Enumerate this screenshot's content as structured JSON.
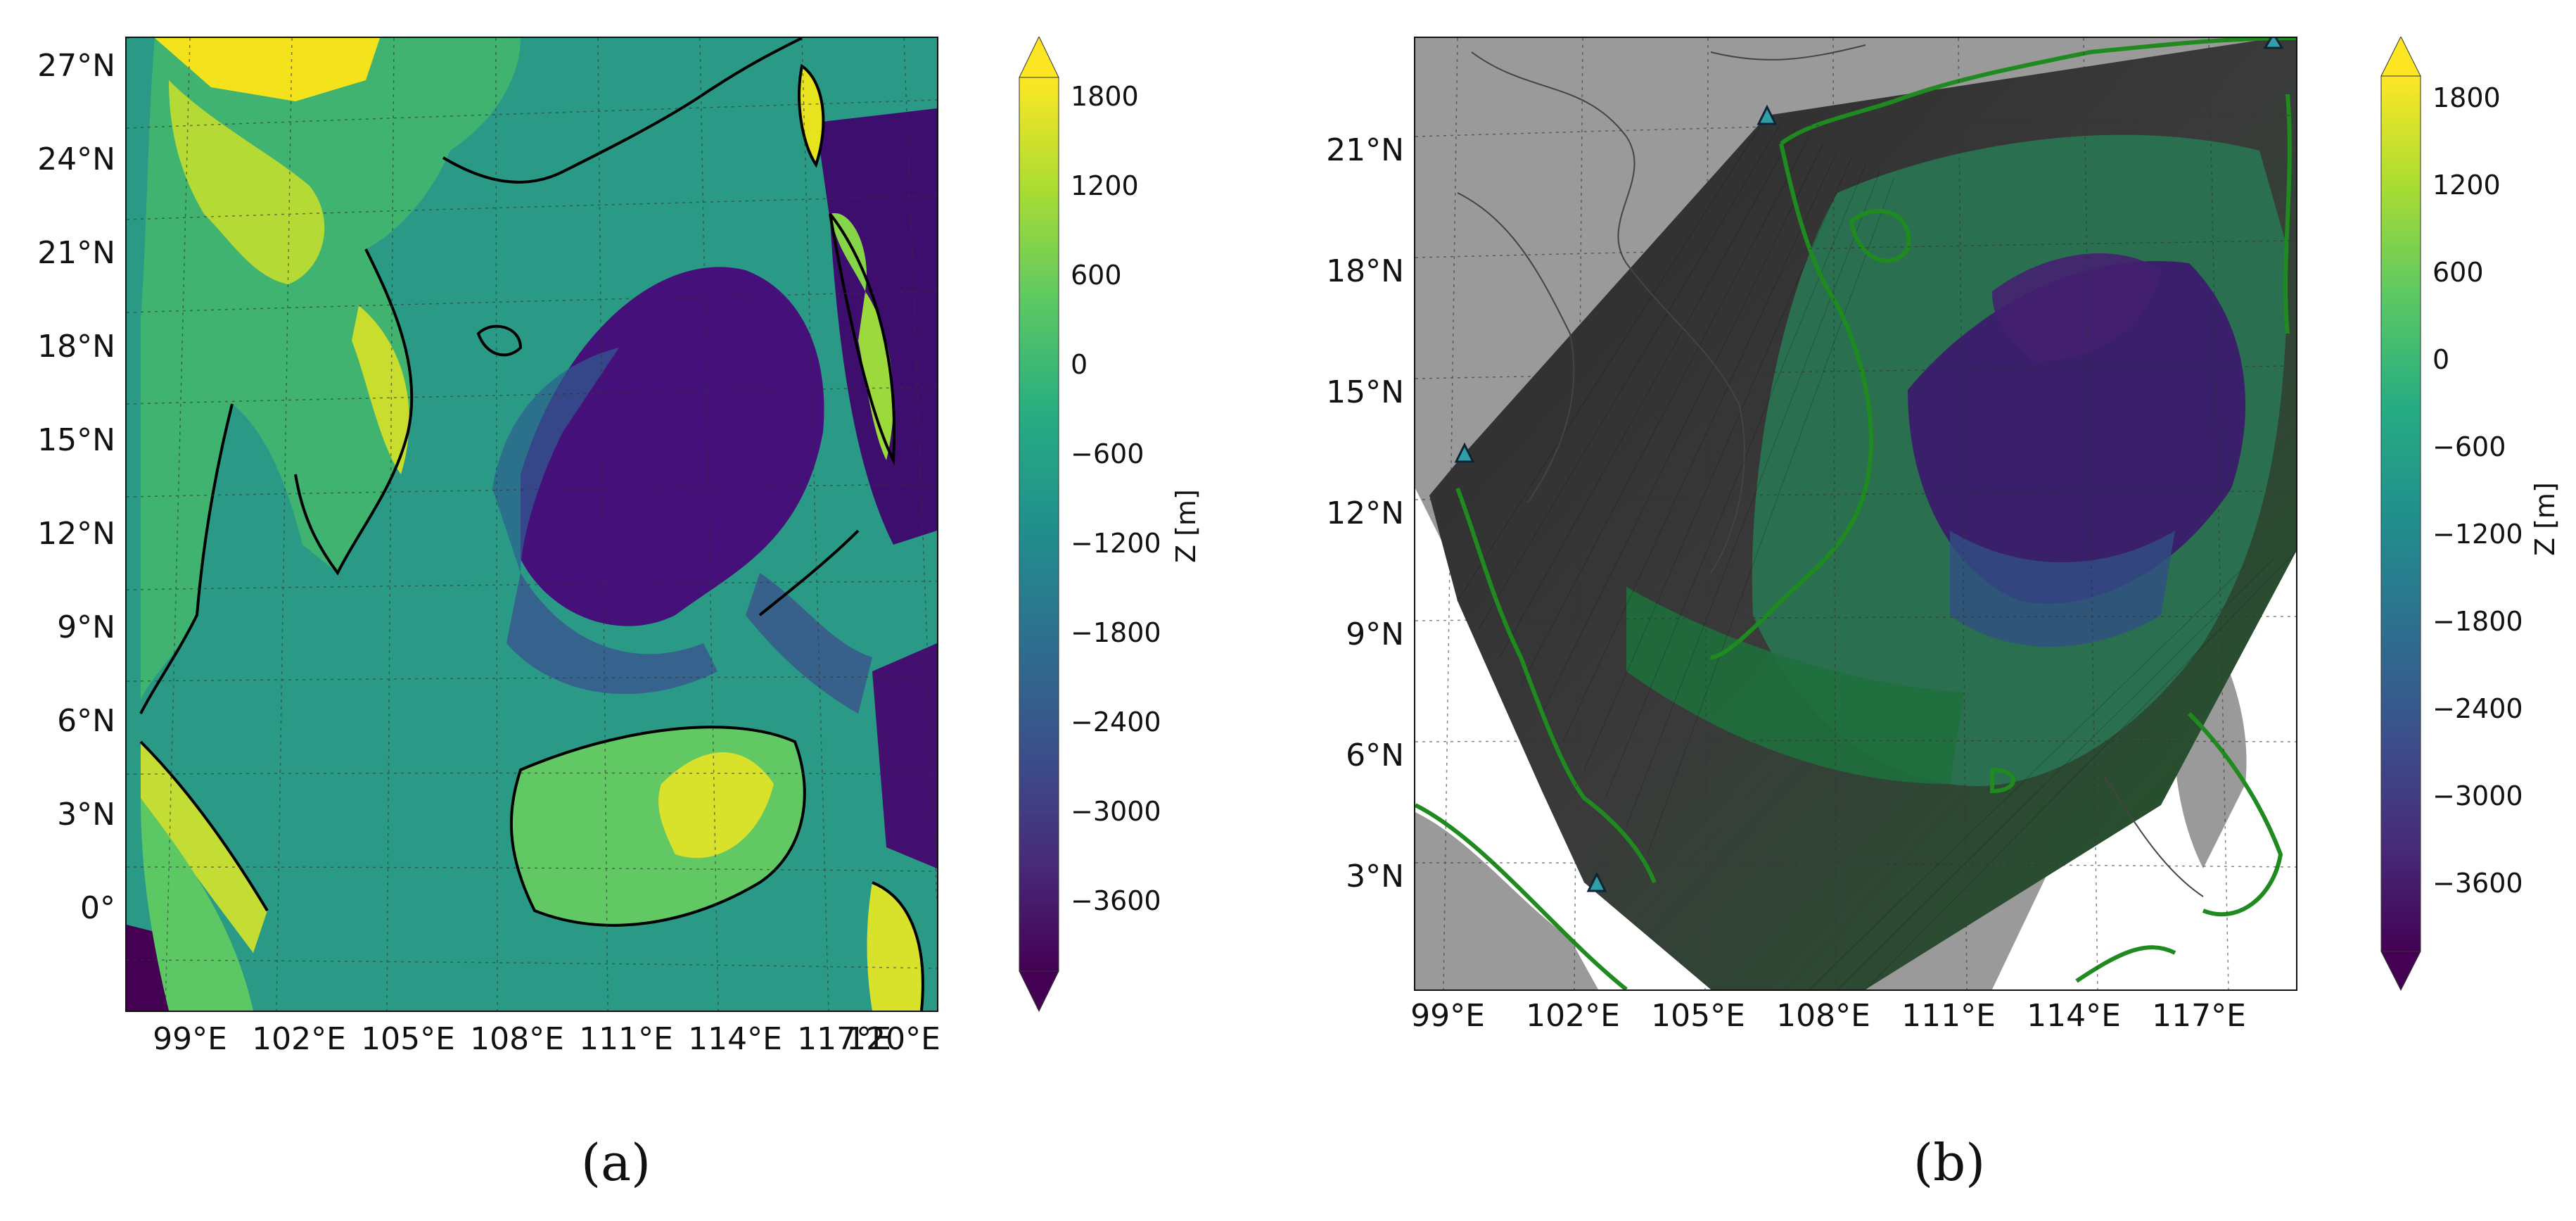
{
  "panels": [
    {
      "caption": "(a)",
      "lat_labels": [
        "27°N",
        "24°N",
        "21°N",
        "18°N",
        "15°N",
        "12°N",
        "9°N",
        "6°N",
        "3°N",
        "0°"
      ],
      "lon_labels": [
        "99°E",
        "102°E",
        "105°E",
        "108°E",
        "111°E",
        "114°E",
        "117°E",
        "120°E"
      ],
      "colorbar": {
        "label": "Z [m]",
        "ticks": [
          "1800",
          "1200",
          "600",
          "0",
          "−600",
          "−1200",
          "−1800",
          "−2400",
          "−3000",
          "−3600"
        ]
      }
    },
    {
      "caption": "(b)",
      "lat_labels": [
        "21°N",
        "18°N",
        "15°N",
        "12°N",
        "9°N",
        "6°N",
        "3°N"
      ],
      "lon_labels": [
        "99°E",
        "102°E",
        "105°E",
        "108°E",
        "111°E",
        "114°E",
        "117°E"
      ],
      "colorbar": {
        "label": "Z [m]",
        "ticks": [
          "1800",
          "1200",
          "600",
          "0",
          "−600",
          "−1200",
          "−1800",
          "−2400",
          "−3000",
          "−3600"
        ]
      }
    }
  ],
  "colors": {
    "viridis": [
      "#440154",
      "#472c7a",
      "#3b518b",
      "#2c718e",
      "#21908d",
      "#27ad81",
      "#5cc863",
      "#aadc32",
      "#fde725"
    ],
    "land_mask": "#9a9a9a",
    "coastline_b": "#1f8a1f",
    "station_marker": "#2f9ea8"
  }
}
